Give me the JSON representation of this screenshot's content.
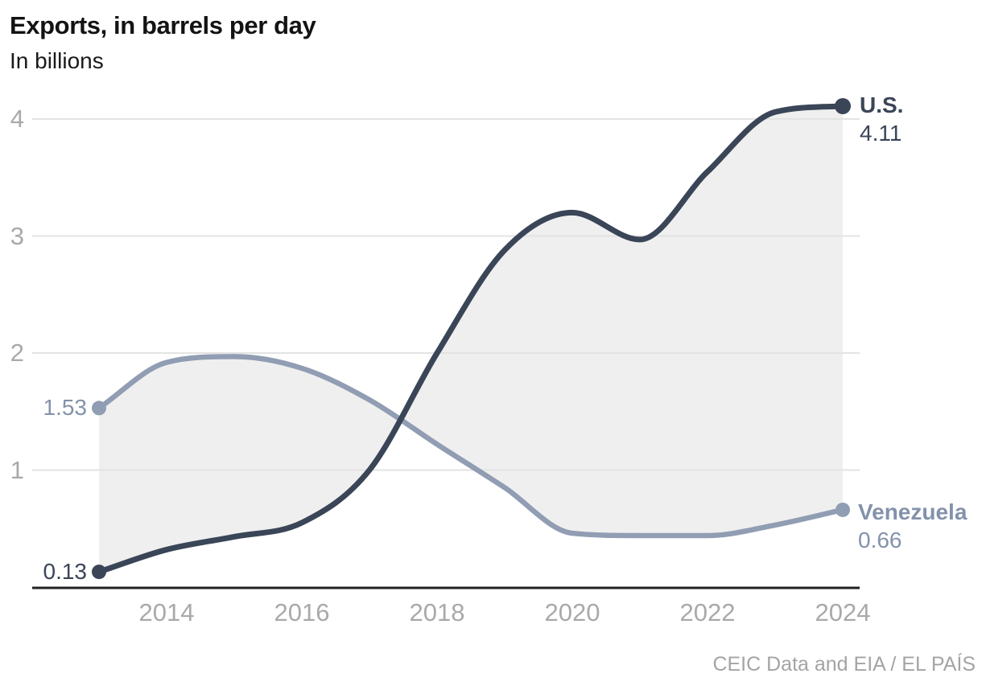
{
  "header": {
    "title": "Exports, in barrels per day",
    "subtitle": "In billions"
  },
  "source": {
    "credit": "CEIC Data and EIA / EL PAÍS"
  },
  "colors": {
    "us": "#3a4557",
    "venezuela_line": "#909db3",
    "venezuela_text": "#8392ab",
    "fill_between": "#efefef",
    "gridline": "#e3e3e3",
    "axis_line": "#222222",
    "tick_text": "#a9a9a9"
  },
  "chart_data": {
    "type": "line",
    "title": "Exports, in barrels per day",
    "subtitle": "In billions",
    "x": [
      2013,
      2014,
      2015,
      2016,
      2017,
      2018,
      2019,
      2020,
      2021,
      2022,
      2023,
      2024
    ],
    "series": [
      {
        "name": "U.S.",
        "color": "#3a4557",
        "values": [
          0.13,
          0.32,
          0.43,
          0.55,
          1.0,
          2.0,
          2.88,
          3.2,
          2.97,
          3.55,
          4.06,
          4.11
        ],
        "start_label": "0.13",
        "end_label": "4.11"
      },
      {
        "name": "Venezuela",
        "color": "#909db3",
        "values": [
          1.53,
          1.92,
          1.97,
          1.87,
          1.6,
          1.22,
          0.85,
          0.46,
          0.44,
          0.44,
          0.53,
          0.66
        ],
        "start_label": "1.53",
        "end_label": "0.66"
      }
    ],
    "y_ticks": [
      {
        "value": 1,
        "label": "1"
      },
      {
        "value": 2,
        "label": "2"
      },
      {
        "value": 3,
        "label": "3"
      },
      {
        "value": 4,
        "label": "4"
      }
    ],
    "x_ticks": [
      {
        "value": 2014,
        "label": "2014"
      },
      {
        "value": 2016,
        "label": "2016"
      },
      {
        "value": 2018,
        "label": "2018"
      },
      {
        "value": 2020,
        "label": "2020"
      },
      {
        "value": 2022,
        "label": "2022"
      },
      {
        "value": 2024,
        "label": "2024"
      }
    ],
    "xlim": [
      2013,
      2024
    ],
    "ylim": [
      0,
      4.25
    ],
    "grid": "horizontal",
    "area_between_series": true,
    "legend_position": "line-end-labels"
  }
}
